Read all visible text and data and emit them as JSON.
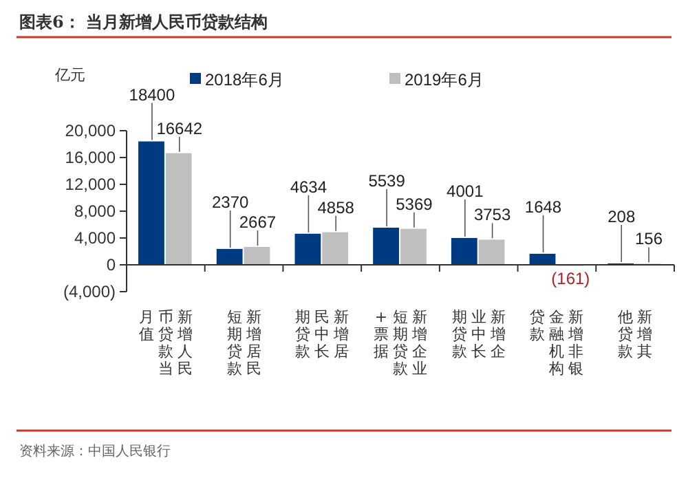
{
  "chart_data": {
    "type": "bar",
    "title": "图表6：  当月新增人民币贷款结构",
    "ylabel": "亿元",
    "categories": [
      "新增人民币贷款当月值",
      "新增居民短期贷款",
      "新增居民中长期贷款",
      "新增企业短期贷款+票据",
      "新增企业中长期贷款",
      "新增非银金融机构贷款",
      "新增其他贷款"
    ],
    "series": [
      {
        "name": "2018年6月",
        "color": "#003a80",
        "values": [
          18400,
          2370,
          4634,
          5539,
          4001,
          1648,
          208
        ],
        "value_labels": [
          "18400",
          "2370",
          "4634",
          "5539",
          "4001",
          "1648",
          "208"
        ]
      },
      {
        "name": "2019年6月",
        "color": "#bfbfbf",
        "values": [
          16642,
          2667,
          4858,
          5369,
          3753,
          -161,
          156
        ],
        "value_labels": [
          "16642",
          "2667",
          "4858",
          "5369",
          "3753",
          "(161)",
          "156"
        ]
      }
    ],
    "ylim": [
      -4000,
      20000
    ],
    "yticks": [
      {
        "value": -4000,
        "label": "(4,000)"
      },
      0,
      {
        "value": 4000,
        "label": "4,000"
      },
      {
        "value": 8000,
        "label": "8,000"
      },
      {
        "value": 12000,
        "label": "12,000"
      },
      {
        "value": 16000,
        "label": "16,000"
      },
      {
        "value": 20000,
        "label": "20,000"
      }
    ],
    "legend": "top",
    "annotations": [
      "资料来源：中国人民银行"
    ]
  }
}
